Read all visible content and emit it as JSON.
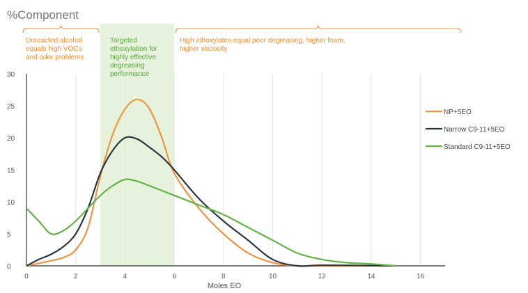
{
  "chart_data": {
    "type": "line",
    "title": "%Component",
    "xlabel": "Moles EO",
    "ylabel": "",
    "xlim": [
      0,
      17
    ],
    "ylim": [
      0,
      30
    ],
    "xticks": [
      0,
      2,
      4,
      6,
      8,
      10,
      12,
      14,
      16
    ],
    "yticks": [
      0,
      5,
      10,
      15,
      20,
      25,
      30
    ],
    "grid": "vertical",
    "legend_position": "right",
    "highlight_band": {
      "x_start": 3,
      "x_end": 6,
      "color": "#e6f2dc"
    },
    "annotations": [
      {
        "id": "left",
        "lines": [
          "Unreacted alcohol",
          "equals high VOCs",
          "and odor problems"
        ],
        "x_start": 0,
        "x_end": 3
      },
      {
        "id": "middle",
        "lines": [
          "Targeted",
          "ethoxylation for",
          "highly effective",
          "degreasing",
          "performance"
        ],
        "x_start": 3,
        "x_end": 6
      },
      {
        "id": "right",
        "lines": [
          "High ethoxylates equal poor degreasing, higher foam,",
          "higher viscosity"
        ],
        "x_start": 6,
        "x_end": 17.7
      }
    ],
    "series": [
      {
        "name": "NP+5EO",
        "color": "#ee9440",
        "points": [
          [
            0,
            0
          ],
          [
            0.5,
            0.4
          ],
          [
            1,
            0.8
          ],
          [
            1.5,
            1.3
          ],
          [
            2,
            2.5
          ],
          [
            2.5,
            6
          ],
          [
            3,
            14
          ],
          [
            3.5,
            20.5
          ],
          [
            4,
            24.5
          ],
          [
            4.5,
            26
          ],
          [
            5,
            24.5
          ],
          [
            5.5,
            20
          ],
          [
            6,
            14.5
          ],
          [
            7,
            9
          ],
          [
            8,
            5
          ],
          [
            9,
            2
          ],
          [
            10,
            0.5
          ],
          [
            11,
            0
          ],
          [
            12,
            0
          ],
          [
            15,
            0
          ]
        ]
      },
      {
        "name": "Narrow C9-11+5EO",
        "color": "#2b3640",
        "points": [
          [
            0,
            0
          ],
          [
            0.5,
            1
          ],
          [
            1,
            1.8
          ],
          [
            1.5,
            3
          ],
          [
            2,
            5
          ],
          [
            2.5,
            9
          ],
          [
            3,
            14.5
          ],
          [
            3.5,
            18
          ],
          [
            4,
            20
          ],
          [
            4.5,
            19.8
          ],
          [
            5,
            18.5
          ],
          [
            5.5,
            17
          ],
          [
            6,
            15
          ],
          [
            7,
            10.5
          ],
          [
            8,
            7
          ],
          [
            9,
            4
          ],
          [
            10,
            1
          ],
          [
            11,
            0
          ],
          [
            12,
            0.1
          ],
          [
            15,
            0
          ]
        ]
      },
      {
        "name": "Standard C9-11+5EO",
        "color": "#64b245",
        "points": [
          [
            0,
            9
          ],
          [
            0.5,
            7
          ],
          [
            1,
            5
          ],
          [
            1.5,
            5.5
          ],
          [
            2,
            7
          ],
          [
            2.5,
            9
          ],
          [
            3,
            11
          ],
          [
            3.5,
            12.5
          ],
          [
            4,
            13.5
          ],
          [
            4.5,
            13.2
          ],
          [
            5,
            12.5
          ],
          [
            6,
            11
          ],
          [
            7,
            9.5
          ],
          [
            8,
            8
          ],
          [
            9,
            6
          ],
          [
            10,
            4
          ],
          [
            11,
            2
          ],
          [
            12,
            1
          ],
          [
            13,
            0.5
          ],
          [
            14,
            0.3
          ],
          [
            15,
            0
          ]
        ]
      }
    ]
  }
}
